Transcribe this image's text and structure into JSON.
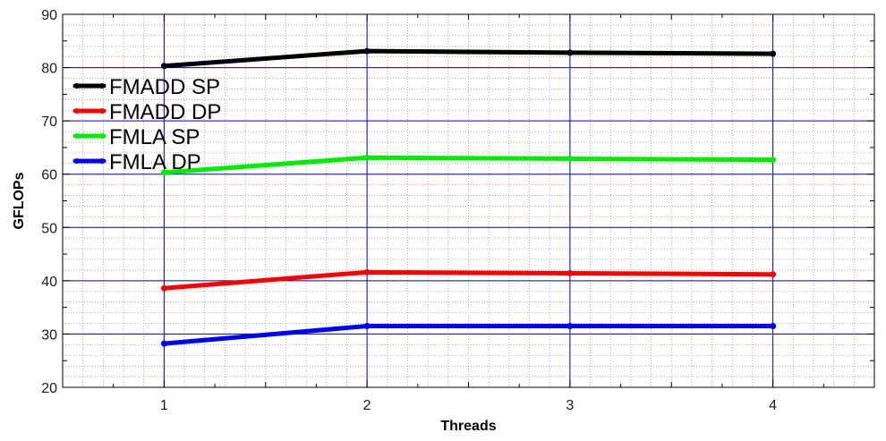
{
  "chart_data": {
    "type": "line",
    "title": "",
    "xlabel": "Threads",
    "ylabel": "GFLOPs",
    "x": [
      1,
      2,
      3,
      4
    ],
    "xlim": [
      0.5,
      4.5
    ],
    "ylim": [
      20,
      90
    ],
    "xticks": [
      "1",
      "2",
      "3",
      "4"
    ],
    "yticks": [
      "20",
      "30",
      "40",
      "50",
      "60",
      "70",
      "80",
      "90"
    ],
    "grid": true,
    "legend_position": "top-left",
    "series": [
      {
        "name": "FMADD SP",
        "color": "#000000",
        "values": [
          80.3,
          83.1,
          82.8,
          82.6
        ]
      },
      {
        "name": "FMADD DP",
        "color": "#ff0000",
        "values": [
          38.6,
          41.6,
          41.4,
          41.2
        ]
      },
      {
        "name": "FMLA SP",
        "color": "#00ee00",
        "values": [
          60.3,
          63.1,
          62.9,
          62.7
        ]
      },
      {
        "name": "FMLA DP",
        "color": "#0000ff",
        "values": [
          28.2,
          31.5,
          31.5,
          31.5
        ]
      }
    ]
  }
}
